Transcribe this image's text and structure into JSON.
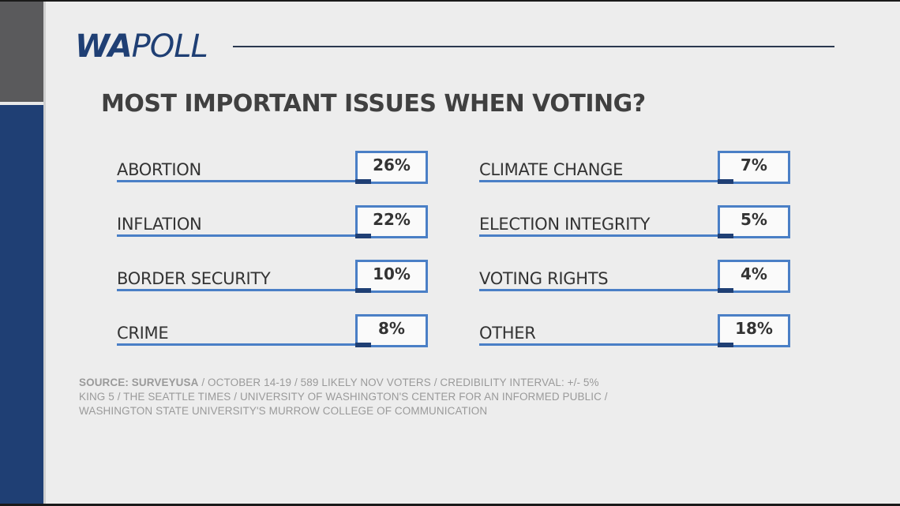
{
  "logo": {
    "wa": "WA",
    "poll": "POLL"
  },
  "chart_data": {
    "type": "table",
    "title": "MOST IMPORTANT ISSUES WHEN VOTING?",
    "categories": [
      "ABORTION",
      "INFLATION",
      "BORDER SECURITY",
      "CRIME",
      "CLIMATE CHANGE",
      "ELECTION INTEGRITY",
      "VOTING RIGHTS",
      "OTHER"
    ],
    "values": [
      26,
      22,
      10,
      8,
      7,
      5,
      4,
      18
    ],
    "value_labels": [
      "26%",
      "22%",
      "10%",
      "8%",
      "7%",
      "5%",
      "4%",
      "18%"
    ],
    "unit": "%"
  },
  "source": {
    "bold": "SOURCE: SURVEYUSA",
    "line1": " / OCTOBER 14-19 / 589 LIKELY NOV VOTERS / CREDIBILITY INTERVAL: +/- 5%",
    "line2": "KING 5 / THE SEATTLE TIMES / UNIVERSITY OF WASHINGTON'S CENTER FOR AN INFORMED PUBLIC /",
    "line3": "WASHINGTON STATE UNIVERSITY'S MURROW COLLEGE OF COMMUNICATION"
  },
  "colors": {
    "navy": "#1f3f74",
    "accent": "#4a7fc6",
    "text": "#404040"
  }
}
